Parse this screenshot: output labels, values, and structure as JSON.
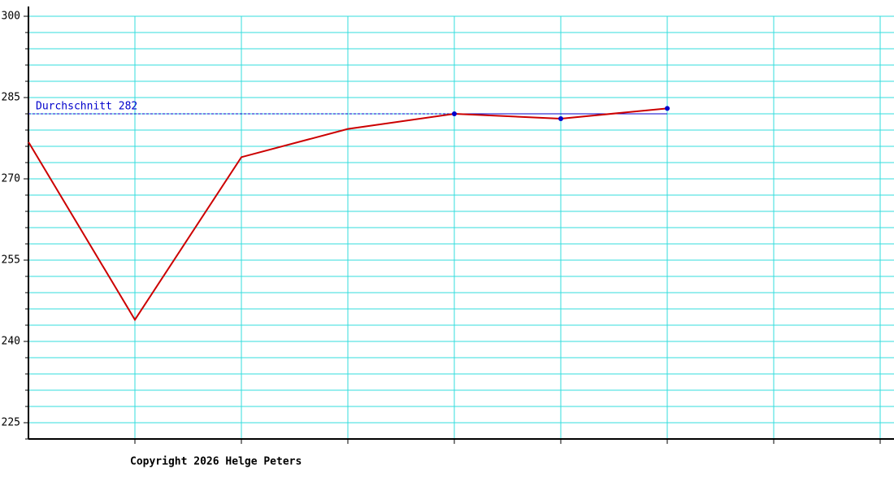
{
  "chart_data": {
    "type": "line",
    "categories": [
      null,
      null,
      null,
      null,
      null,
      null,
      null,
      null,
      null
    ],
    "series": [
      {
        "color": "#cc0000",
        "values": [
          276.8,
          244,
          274,
          279.2,
          282,
          281.1,
          283,
          null,
          null
        ]
      },
      {
        "color": "#0000cc",
        "values": [
          null,
          null,
          null,
          null,
          282,
          281.1,
          283,
          null,
          null
        ],
        "style": "markers"
      }
    ],
    "average": {
      "value": 282,
      "label": "Durchschnitt 282",
      "color": "#0000cc"
    },
    "ylim": [
      222,
      300
    ],
    "yticks": [
      225,
      240,
      255,
      270,
      285,
      300
    ],
    "minor_yticks": [
      222,
      228,
      231,
      234,
      237,
      243,
      246,
      249,
      252,
      258,
      261,
      264,
      267,
      273,
      276,
      279,
      282,
      288,
      291,
      294,
      297
    ],
    "grid": true,
    "grid_color": "#33dddd",
    "footer": "Copyright 2026 Helge Peters"
  }
}
